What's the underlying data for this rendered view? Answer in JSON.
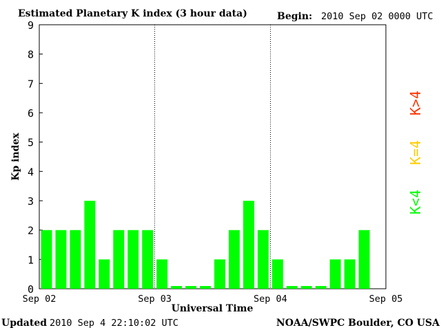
{
  "header": {
    "title": "Estimated Planetary K index (3 hour data)",
    "begin_label": "Begin:",
    "begin_value": "2010 Sep 02 0000 UTC"
  },
  "footer": {
    "updated_label": "Updated",
    "updated_value": "2010 Sep  4 22:10:02 UTC",
    "source": "NOAA/SWPC Boulder, CO USA"
  },
  "legend": {
    "high": "K>4",
    "mid": "K=4",
    "low": "K<4"
  },
  "colors": {
    "low": "#00ff00",
    "mid": "#ffcc00",
    "high": "#ff3300",
    "axis": "#000000"
  },
  "chart_data": {
    "type": "bar",
    "title": "Estimated Planetary K index (3 hour data)",
    "xlabel": "Universal Time",
    "ylabel": "Kp index",
    "ylim": [
      0,
      9
    ],
    "yticks": [
      0,
      1,
      2,
      3,
      4,
      5,
      6,
      7,
      8,
      9
    ],
    "xtick_labels": [
      "Sep 02",
      "Sep 03",
      "Sep 04",
      "Sep 05"
    ],
    "bars_per_day": 8,
    "values": [
      2,
      2,
      2,
      3,
      1,
      2,
      2,
      2,
      1,
      0,
      0,
      0,
      1,
      2,
      3,
      2,
      1,
      0,
      0,
      0,
      1,
      1,
      2
    ],
    "grid": false,
    "day_separators": "dotted vertical lines"
  }
}
